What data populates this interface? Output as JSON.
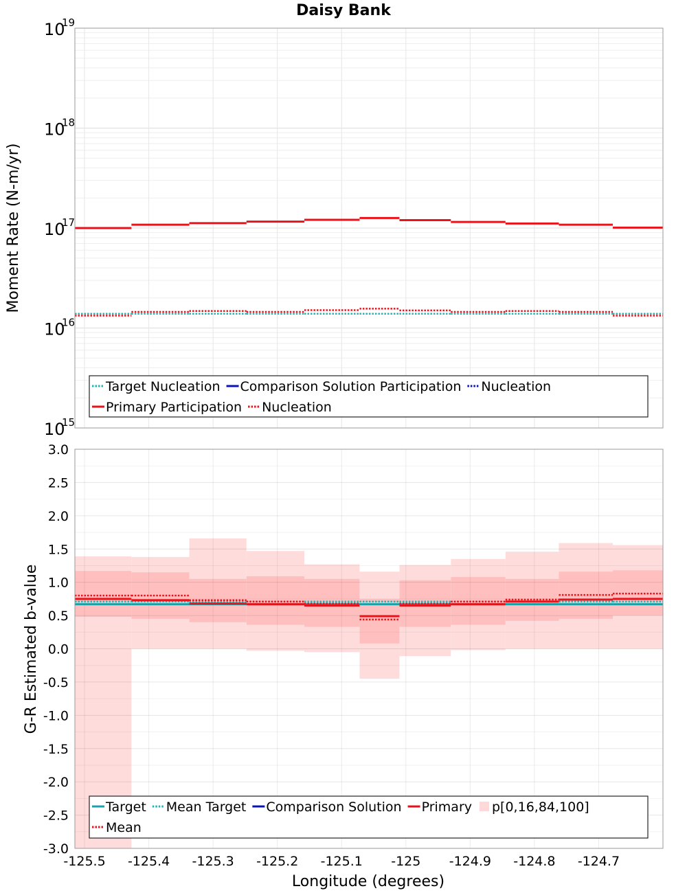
{
  "title": "Daisy Bank",
  "xlabel": "Longitude (degrees)",
  "chart_data": [
    {
      "type": "line",
      "title": "Daisy Bank",
      "ylabel": "Moment Rate (N-m/yr)",
      "yscale": "log",
      "ylim": [
        1000000000000000.0,
        1e+19
      ],
      "xlim": [
        -125.515,
        -124.6
      ],
      "grid": true,
      "legend_position": "bottom",
      "y_tick_labels": [
        {
          "base": "10",
          "exp": "19"
        },
        {
          "base": "10",
          "exp": "18"
        },
        {
          "base": "10",
          "exp": "17"
        },
        {
          "base": "10",
          "exp": "16"
        },
        {
          "base": "10",
          "exp": "15"
        }
      ],
      "legend": {
        "entries": [
          {
            "label": "Target Nucleation",
            "color": "#1fb5b5",
            "style": "dotted"
          },
          {
            "label": "Comparison Solution Participation",
            "color": "#0a14b4",
            "style": "solid"
          },
          {
            "label": "Nucleation",
            "color": "#0a14b4",
            "style": "dotted"
          },
          {
            "label": "Primary Participation",
            "color": "#e8131a",
            "style": "solid"
          },
          {
            "label": "Nucleation",
            "color": "#e8131a",
            "style": "dotted"
          }
        ]
      },
      "bin_edges": [
        -125.515,
        -125.427,
        -125.337,
        -125.248,
        -125.158,
        -125.072,
        -125.01,
        -124.93,
        -124.845,
        -124.762,
        -124.678,
        -124.6
      ],
      "series": [
        {
          "name": "Primary Participation",
          "color": "#e8131a",
          "style": "solid",
          "values": [
            1e+17,
            1.08e+17,
            1.12e+17,
            1.16e+17,
            1.21e+17,
            1.26e+17,
            1.2e+17,
            1.15e+17,
            1.11e+17,
            1.08e+17,
            1.01e+17
          ]
        },
        {
          "name": "Nucleation",
          "color": "#e8131a",
          "style": "dotted",
          "values": [
            1.33e+16,
            1.45e+16,
            1.48e+16,
            1.45e+16,
            1.51e+16,
            1.56e+16,
            1.5e+16,
            1.45e+16,
            1.48e+16,
            1.45e+16,
            1.33e+16
          ]
        },
        {
          "name": "Target Nucleation",
          "color": "#1fb5b5",
          "style": "dotted",
          "values": [
            1.39e+16,
            1.39e+16,
            1.39e+16,
            1.39e+16,
            1.39e+16,
            1.39e+16,
            1.39e+16,
            1.39e+16,
            1.39e+16,
            1.39e+16,
            1.39e+16
          ]
        }
      ]
    },
    {
      "type": "line",
      "ylabel": "G-R Estimated b-value",
      "ylim": [
        -3.0,
        3.0
      ],
      "xlim": [
        -125.515,
        -124.6
      ],
      "grid": true,
      "legend_position": "bottom",
      "y_ticks": [
        "3.0",
        "2.5",
        "2.0",
        "1.5",
        "1.0",
        "0.5",
        "0.0",
        "-0.5",
        "-1.0",
        "-1.5",
        "-2.0",
        "-2.5",
        "-3.0"
      ],
      "x_ticks": [
        "-125.5",
        "-125.4",
        "-125.3",
        "-125.2",
        "-125.1",
        "-125",
        "-124.9",
        "-124.8",
        "-124.7"
      ],
      "x_tick_values": [
        -125.5,
        -125.4,
        -125.3,
        -125.2,
        -125.1,
        -125.0,
        -124.9,
        -124.8,
        -124.7
      ],
      "legend": {
        "entries": [
          {
            "label": "Target",
            "color": "#1aa0a8",
            "style": "solid"
          },
          {
            "label": "Mean Target",
            "color": "#1fb5b5",
            "style": "dotted"
          },
          {
            "label": "Comparison Solution",
            "color": "#0a14b4",
            "style": "solid"
          },
          {
            "label": "Primary",
            "color": "#e8131a",
            "style": "solid"
          },
          {
            "label": "p[0,16,84,100]",
            "color": "#ffd9d9",
            "style": "band"
          },
          {
            "label": "Mean",
            "color": "#e8131a",
            "style": "dotted"
          }
        ]
      },
      "bin_edges": [
        -125.515,
        -125.427,
        -125.337,
        -125.248,
        -125.158,
        -125.072,
        -125.01,
        -124.93,
        -124.845,
        -124.762,
        -124.678,
        -124.6
      ],
      "bands": {
        "outer_color": "#ffdcdc",
        "inner_color": "#ffbfbf",
        "p0": [
          -3.0,
          0.0,
          0.0,
          -0.03,
          -0.05,
          -0.45,
          -0.11,
          -0.02,
          0.0,
          0.0,
          0.0
        ],
        "p16": [
          0.48,
          0.45,
          0.4,
          0.36,
          0.33,
          0.08,
          0.33,
          0.36,
          0.42,
          0.45,
          0.5
        ],
        "p84": [
          1.17,
          1.15,
          1.05,
          1.09,
          1.05,
          0.75,
          1.03,
          1.08,
          1.05,
          1.16,
          1.18
        ],
        "p100": [
          1.39,
          1.38,
          1.66,
          1.47,
          1.27,
          1.16,
          1.26,
          1.35,
          1.46,
          1.59,
          1.56
        ]
      },
      "series": [
        {
          "name": "Target",
          "color": "#1aa0a8",
          "style": "solid",
          "values": [
            0.67,
            0.67,
            0.67,
            0.67,
            0.67,
            0.67,
            0.67,
            0.67,
            0.67,
            0.67,
            0.67
          ]
        },
        {
          "name": "Mean Target",
          "color": "#1fb5b5",
          "style": "dotted",
          "values": [
            0.71,
            0.71,
            0.71,
            0.71,
            0.71,
            0.71,
            0.71,
            0.71,
            0.71,
            0.71,
            0.71
          ]
        },
        {
          "name": "Primary",
          "color": "#e8131a",
          "style": "solid",
          "values": [
            0.75,
            0.73,
            0.68,
            0.67,
            0.65,
            0.49,
            0.65,
            0.67,
            0.71,
            0.74,
            0.75
          ]
        },
        {
          "name": "Mean",
          "color": "#e8131a",
          "style": "dotted",
          "values": [
            0.8,
            0.8,
            0.73,
            0.71,
            0.68,
            0.44,
            0.68,
            0.71,
            0.74,
            0.81,
            0.83
          ]
        }
      ]
    }
  ]
}
